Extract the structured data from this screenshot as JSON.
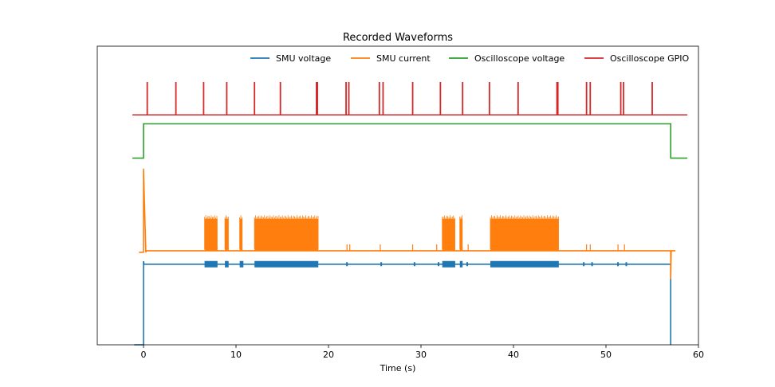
{
  "chart_data": {
    "type": "line",
    "title": "Recorded Waveforms",
    "xlabel": "Time (s)",
    "ylabel": "",
    "xlim": [
      -5,
      60
    ],
    "ylim": [
      0,
      1
    ],
    "xticks": [
      0,
      10,
      20,
      30,
      40,
      50,
      60
    ],
    "y_ticks_visible": false,
    "legend_position": "top-right",
    "series": [
      {
        "name": "SMU voltage",
        "color": "#1f77b4",
        "baseline": 0.27,
        "thick_segments": [
          [
            6.6,
            8.0
          ],
          [
            8.8,
            9.2
          ],
          [
            10.4,
            10.8
          ],
          [
            12.0,
            18.9
          ],
          [
            32.3,
            33.7
          ],
          [
            34.2,
            34.5
          ],
          [
            37.5,
            44.9
          ]
        ],
        "points": [
          [
            -1.0,
            0.0
          ],
          [
            -0.05,
            0.0
          ],
          [
            0.0,
            0.0
          ],
          [
            0.0,
            0.28
          ],
          [
            0.05,
            0.27
          ],
          [
            57.0,
            0.27
          ],
          [
            57.0,
            0.0
          ]
        ]
      },
      {
        "name": "SMU current",
        "color": "#ff7f0e",
        "baseline": 0.315,
        "burst_segments": [
          [
            6.6,
            8.0
          ],
          [
            8.8,
            9.2
          ],
          [
            10.4,
            10.7
          ],
          [
            12.0,
            18.9
          ],
          [
            32.3,
            33.7
          ],
          [
            34.2,
            34.5
          ],
          [
            37.5,
            44.9
          ]
        ],
        "points": [
          [
            -0.5,
            0.31
          ],
          [
            0.0,
            0.31
          ],
          [
            0.0,
            0.59
          ],
          [
            0.25,
            0.31
          ],
          [
            0.3,
            0.315
          ],
          [
            57.0,
            0.315
          ],
          [
            57.0,
            0.22
          ],
          [
            57.05,
            0.315
          ],
          [
            57.5,
            0.315
          ]
        ]
      },
      {
        "name": "Oscilloscope voltage",
        "color": "#2ca02c",
        "points": [
          [
            -1.2,
            0.625
          ],
          [
            0.0,
            0.625
          ],
          [
            0.0,
            0.74
          ],
          [
            57.0,
            0.74
          ],
          [
            57.0,
            0.625
          ],
          [
            58.8,
            0.625
          ]
        ]
      },
      {
        "name": "Oscilloscope GPIO",
        "color": "#d62728",
        "baseline": 0.77,
        "spike_peak": 0.88,
        "spike_times": [
          0.4,
          3.5,
          6.5,
          9.0,
          12.0,
          14.8,
          18.7,
          18.8,
          21.9,
          22.2,
          25.5,
          25.9,
          29.1,
          32.1,
          34.5,
          37.4,
          40.5,
          44.7,
          44.8,
          47.9,
          48.3,
          51.6,
          51.9,
          55.0
        ],
        "x_range": [
          -1.2,
          58.8
        ]
      }
    ]
  }
}
